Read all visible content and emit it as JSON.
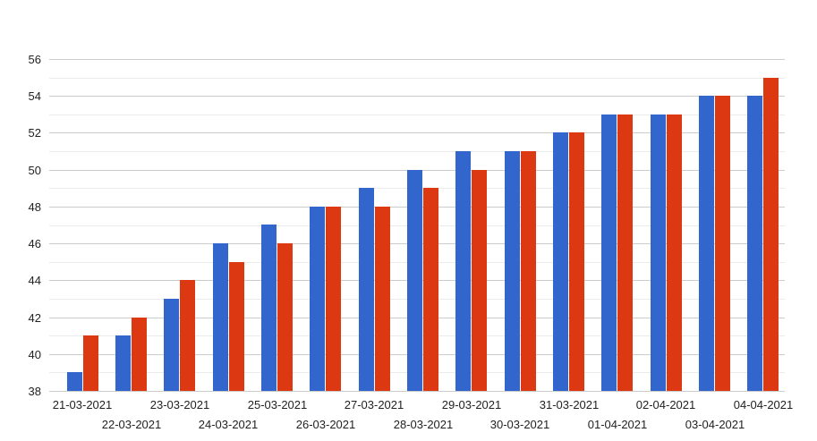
{
  "chart": {
    "background_color": "#ffffff",
    "text_color": "#222222",
    "gridline_color": "#cccccc",
    "minor_gridline_color": "#ebebeb"
  },
  "chart_data": {
    "type": "bar",
    "title": "",
    "xlabel": "",
    "ylabel": "",
    "categories": [
      "21-03-2021",
      "22-03-2021",
      "23-03-2021",
      "24-03-2021",
      "25-03-2021",
      "26-03-2021",
      "27-03-2021",
      "28-03-2021",
      "29-03-2021",
      "30-03-2021",
      "31-03-2021",
      "01-04-2021",
      "02-04-2021",
      "03-04-2021",
      "04-04-2021"
    ],
    "series": [
      {
        "name": "blue-series",
        "color": "#3366cc",
        "values": [
          39,
          41,
          43,
          46,
          47,
          48,
          49,
          50,
          51,
          51,
          52,
          53,
          53,
          54,
          54
        ]
      },
      {
        "name": "red-series",
        "color": "#dc3912",
        "values": [
          41,
          42,
          44,
          45,
          46,
          48,
          48,
          49,
          50,
          51,
          52,
          53,
          53,
          54,
          55
        ]
      }
    ],
    "ylim": [
      38,
      56
    ],
    "yticks": [
      38,
      40,
      42,
      44,
      46,
      48,
      50,
      52,
      54,
      56
    ],
    "minor_ytick_step": 1,
    "grid": true,
    "legend_position": "none",
    "x_labels_staggered": true
  }
}
